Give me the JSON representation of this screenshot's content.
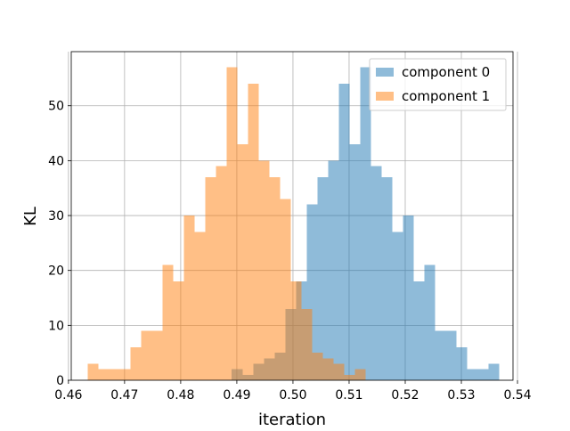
{
  "chart_data": {
    "type": "histogram",
    "xlabel": "iteration",
    "ylabel": "KL",
    "xlim": [
      0.4605,
      0.5392
    ],
    "ylim": [
      0,
      59.85
    ],
    "grid": true,
    "legend_position": "top-right",
    "xticks": [
      0.46,
      0.47,
      0.48,
      0.49,
      0.5,
      0.51,
      0.52,
      0.53,
      0.54
    ],
    "xtick_labels": [
      "0.46",
      "0.47",
      "0.48",
      "0.49",
      "0.50",
      "0.51",
      "0.52",
      "0.53",
      "0.54"
    ],
    "yticks": [
      0,
      10,
      20,
      30,
      40,
      50
    ],
    "ytick_labels": [
      "0",
      "10",
      "20",
      "30",
      "40",
      "50"
    ],
    "bin_width": 0.001905,
    "alpha": 0.5,
    "series": [
      {
        "name": "component 0",
        "color": "#1f77b4",
        "bin_start": 0.4891,
        "counts": [
          2,
          1,
          3,
          4,
          5,
          13,
          18,
          32,
          37,
          40,
          54,
          43,
          57,
          39,
          37,
          27,
          30,
          18,
          21,
          9,
          9,
          6,
          2,
          2,
          3
        ]
      },
      {
        "name": "component 1",
        "color": "#ff7f0e",
        "bin_start": 0.4634,
        "counts": [
          3,
          2,
          2,
          2,
          6,
          9,
          9,
          21,
          18,
          30,
          27,
          37,
          39,
          57,
          43,
          54,
          40,
          37,
          33,
          18,
          13,
          5,
          4,
          3,
          1,
          2
        ]
      }
    ]
  }
}
